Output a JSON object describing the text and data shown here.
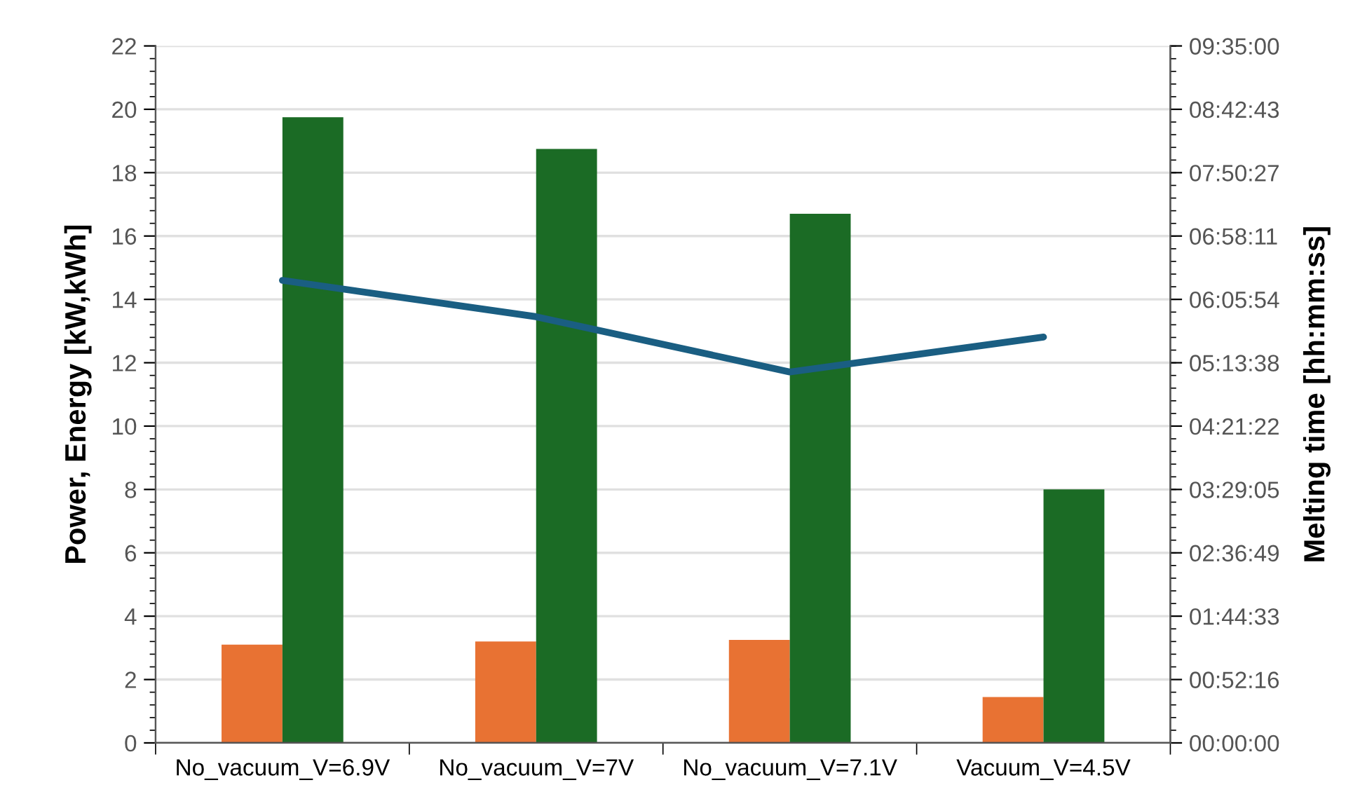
{
  "chart_data": {
    "type": "bar",
    "ylabel": "Power, Energy [kW,kWh]",
    "y2label": "Melting time [hh:mm:ss]",
    "categories": [
      "No_vacuum_V=6.9V",
      "No_vacuum_V=7V",
      "No_vacuum_V=7.1V",
      "Vacuum_V=4.5V"
    ],
    "series": [
      {
        "color": "#e87233",
        "values": [
          3.1,
          3.2,
          3.25,
          1.45
        ]
      },
      {
        "color": "#1b6b25",
        "values": [
          19.75,
          18.75,
          16.7,
          8.0
        ]
      },
      {
        "type": "line",
        "axis": "y2",
        "color": "#1a5e82",
        "values": [
          6.36,
          5.86,
          5.1,
          5.58
        ]
      }
    ],
    "ylim": [
      0,
      22
    ],
    "yticks": [
      0,
      2,
      4,
      6,
      8,
      10,
      12,
      14,
      16,
      18,
      20,
      22
    ],
    "y2lim": [
      0,
      9.5833
    ],
    "y2ticks": [
      {
        "value": 0,
        "label": "00:00:00"
      },
      {
        "value": 0.8711,
        "label": "00:52:16"
      },
      {
        "value": 1.7425,
        "label": "01:44:33"
      },
      {
        "value": 2.6136,
        "label": "02:36:49"
      },
      {
        "value": 3.4847,
        "label": "03:29:05"
      },
      {
        "value": 4.3561,
        "label": "04:21:22"
      },
      {
        "value": 5.2272,
        "label": "05:13:38"
      },
      {
        "value": 6.0983,
        "label": "06:05:54"
      },
      {
        "value": 6.9697,
        "label": "06:58:11"
      },
      {
        "value": 7.8408,
        "label": "07:50:27"
      },
      {
        "value": 8.7119,
        "label": "08:42:43"
      },
      {
        "value": 9.5833,
        "label": "09:35:00"
      }
    ],
    "grid": "y",
    "legend": false,
    "marker": "none",
    "line_style": "solid"
  }
}
